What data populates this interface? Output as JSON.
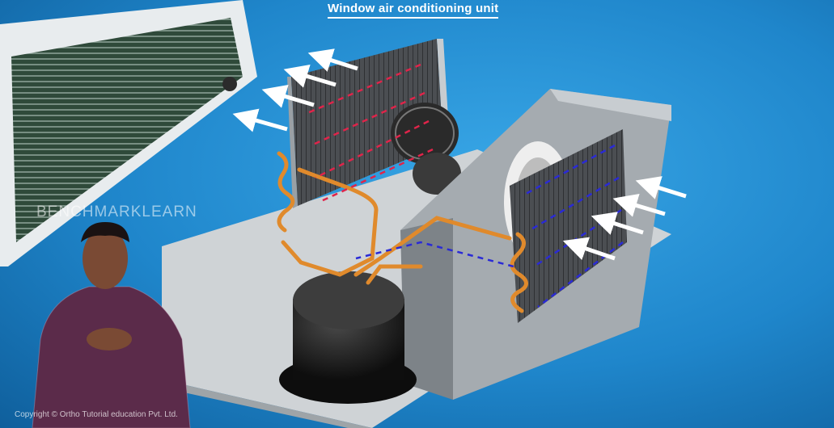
{
  "caption": {
    "title": "Window air conditioning unit"
  },
  "watermark": {
    "text": "BENCHMARKLEARN"
  },
  "footer": {
    "copyright": "Copyright © Ortho Tutorial education Pvt. Ltd."
  },
  "colors": {
    "background": "#1f86cb",
    "hot_flow_arrows": "#e0244a",
    "cold_flow_arrows": "#2a2ad6",
    "air_flow_arrows": "#ffffff",
    "copper_pipe": "#e08a2c",
    "chassis": "#cfd3d6",
    "compressor": "#151515"
  },
  "icons": [
    "air-flow-arrow-icon"
  ]
}
